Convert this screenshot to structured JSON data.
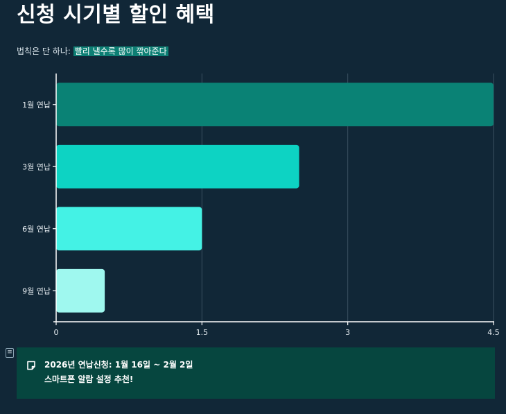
{
  "header": {
    "title": "신청 시기별 할인 혜택",
    "subtitle_prefix": "법칙은 단 하나: ",
    "subtitle_highlight": "빨리 낼수록 많이 깎아준다"
  },
  "chart_data": {
    "type": "bar",
    "orientation": "horizontal",
    "categories": [
      "1월 연납",
      "3월 연납",
      "6월 연납",
      "9월 연납"
    ],
    "values": [
      4.5,
      2.5,
      1.5,
      0.5
    ],
    "xlim": [
      0,
      4.5
    ],
    "xticks": [
      "0",
      "1.5",
      "3",
      "4.5"
    ],
    "colors": [
      "#0a8275",
      "#0dd3c3",
      "#44f2e5",
      "#9ff8ef"
    ],
    "grid": true
  },
  "note": {
    "marker": "≡",
    "line1": "2026년 연납신청: 1월 16일 ~ 2월 2일",
    "line2": "스마트폰 알람 설정 추천!"
  }
}
